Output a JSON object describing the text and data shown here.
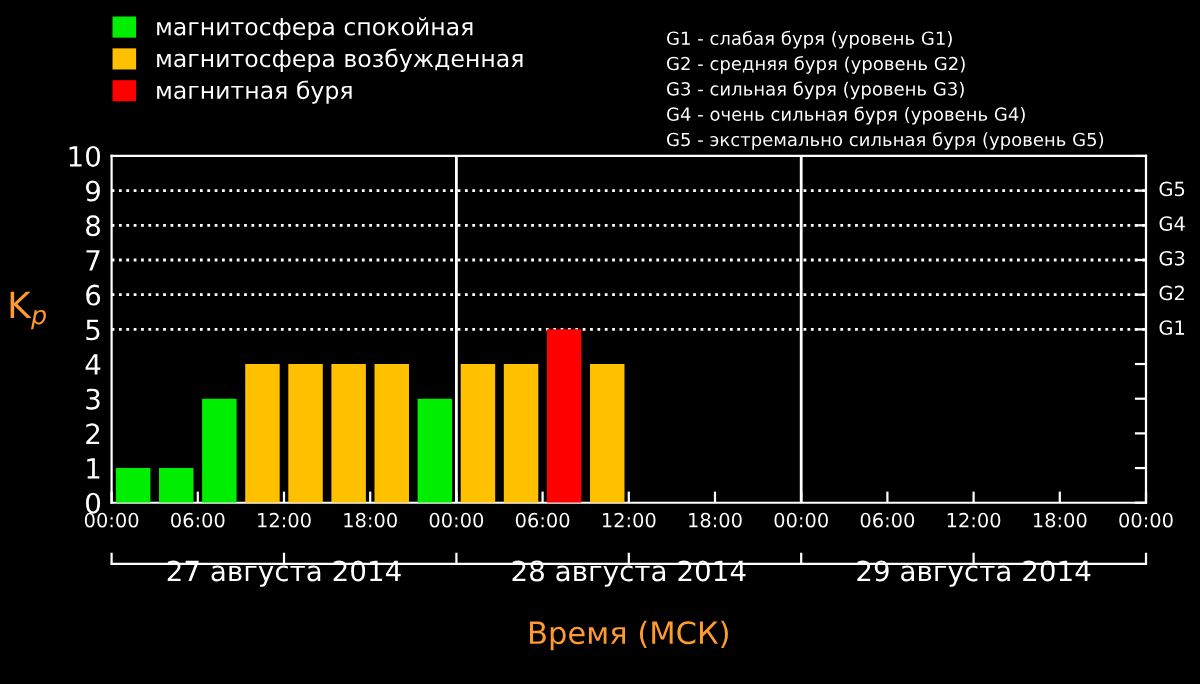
{
  "chart_data": {
    "type": "bar",
    "x": [
      "2014-08-27T01:30",
      "2014-08-27T04:30",
      "2014-08-27T07:30",
      "2014-08-27T10:30",
      "2014-08-27T13:30",
      "2014-08-27T16:30",
      "2014-08-27T19:30",
      "2014-08-27T22:30",
      "2014-08-28T01:30",
      "2014-08-28T04:30",
      "2014-08-28T07:30",
      "2014-08-28T10:30"
    ],
    "series": [
      {
        "name": "магнитосфера спокойная",
        "color": "#00ee00",
        "values": [
          1,
          1,
          3,
          null,
          null,
          null,
          null,
          3,
          null,
          null,
          null,
          null
        ]
      },
      {
        "name": "магнитосфера возбужденная",
        "color": "#ffc000",
        "values": [
          null,
          null,
          null,
          4,
          4,
          4,
          4,
          null,
          4,
          4,
          null,
          4
        ]
      },
      {
        "name": "магнитная буря",
        "color": "#ff0000",
        "values": [
          null,
          null,
          null,
          null,
          null,
          null,
          null,
          null,
          null,
          null,
          5,
          null
        ]
      }
    ],
    "xlim": [
      "2014-08-27T00:00",
      "2014-08-30T00:00"
    ],
    "xticks": [
      {
        "value": "2014-08-27T00:00",
        "label": "00:00"
      },
      {
        "value": "2014-08-27T06:00",
        "label": "06:00"
      },
      {
        "value": "2014-08-27T12:00",
        "label": "12:00"
      },
      {
        "value": "2014-08-27T18:00",
        "label": "18:00"
      },
      {
        "value": "2014-08-28T00:00",
        "label": "00:00"
      },
      {
        "value": "2014-08-28T06:00",
        "label": "06:00"
      },
      {
        "value": "2014-08-28T12:00",
        "label": "12:00"
      },
      {
        "value": "2014-08-28T18:00",
        "label": "18:00"
      },
      {
        "value": "2014-08-29T00:00",
        "label": "00:00"
      },
      {
        "value": "2014-08-29T06:00",
        "label": "06:00"
      },
      {
        "value": "2014-08-29T12:00",
        "label": "12:00"
      },
      {
        "value": "2014-08-29T18:00",
        "label": "18:00"
      },
      {
        "value": "2014-08-30T00:00",
        "label": "00:00"
      }
    ],
    "xlabel": "Время (МСК)",
    "ylabel": "K$_{p}$",
    "ylim": [
      0,
      10
    ],
    "yticks": [
      0,
      1,
      2,
      3,
      4,
      5,
      6,
      7,
      8,
      9,
      10
    ],
    "ref_lines": [
      {
        "axis": "y",
        "value": 5,
        "label": "G1",
        "color": "#ffffff",
        "line_style": "dotted"
      },
      {
        "axis": "y",
        "value": 6,
        "label": "G2",
        "color": "#ffffff",
        "line_style": "dotted"
      },
      {
        "axis": "y",
        "value": 7,
        "label": "G3",
        "color": "#ffffff",
        "line_style": "dotted"
      },
      {
        "axis": "y",
        "value": 8,
        "label": "G4",
        "color": "#ffffff",
        "line_style": "dotted"
      },
      {
        "axis": "y",
        "value": 9,
        "label": "G5",
        "color": "#ffffff",
        "line_style": "dotted"
      },
      {
        "axis": "x",
        "value": "2014-08-28T00:00",
        "color": "#ffffff",
        "line_style": "solid"
      },
      {
        "axis": "x",
        "value": "2014-08-29T00:00",
        "color": "#ffffff",
        "line_style": "solid"
      }
    ],
    "x2lim": [
      "2014-08-27T00:00",
      "2014-08-30T00:00"
    ],
    "x2ticks": [
      {
        "value": "2014-08-27T00:00",
        "label": null
      },
      {
        "value": "2014-08-27T12:00",
        "label": "27 августа 2014"
      },
      {
        "value": "2014-08-28T00:00",
        "label": null
      },
      {
        "value": "2014-08-28T12:00",
        "label": "28 августа 2014"
      },
      {
        "value": "2014-08-29T00:00",
        "label": null
      },
      {
        "value": "2014-08-29T12:00",
        "label": "29 августа 2014"
      },
      {
        "value": "2014-08-30T00:00",
        "label": null
      }
    ],
    "annotations": [
      "G1 - слабая буря (уровень G1)",
      "G2 - средняя буря (уровень G2)",
      "G3 - сильная буря (уровень G3)",
      "G4 - очень сильная буря (уровень G4)",
      "G5 - экстремально сильная буря (уровень G5)"
    ],
    "legend": "top left",
    "grid": false
  }
}
